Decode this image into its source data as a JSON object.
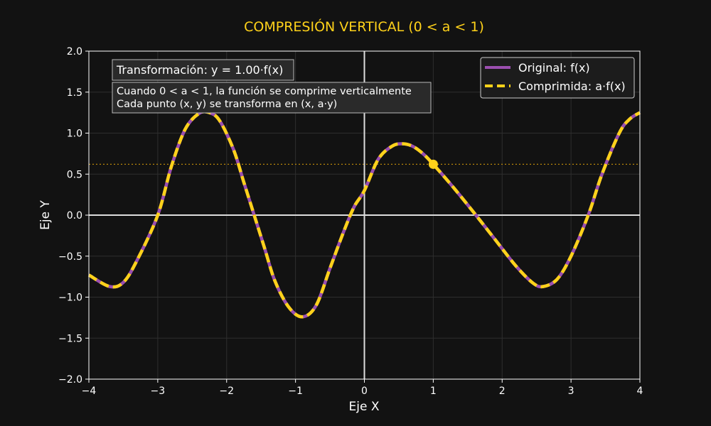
{
  "chart_data": {
    "type": "line",
    "title": "COMPRESIÓN VERTICAL (0 < a < 1)",
    "xlabel": "Eje X",
    "ylabel": "Eje Y",
    "xlim": [
      -4,
      4
    ],
    "ylim": [
      -2,
      2
    ],
    "x_ticks": [
      -4,
      -3,
      -2,
      -1,
      0,
      1,
      2,
      3,
      4
    ],
    "y_ticks": [
      -2.0,
      -1.5,
      -1.0,
      -0.5,
      0.0,
      0.5,
      1.0,
      1.5,
      2.0
    ],
    "x_tick_labels": [
      "−4",
      "−3",
      "−2",
      "−1",
      "0",
      "1",
      "2",
      "3",
      "4"
    ],
    "y_tick_labels": [
      "−2.0",
      "−1.5",
      "−1.0",
      "−0.5",
      "0.0",
      "0.5",
      "1.0",
      "1.5",
      "2.0"
    ],
    "grid": true,
    "legend_position": "top-right",
    "series": [
      {
        "name": "Original: f(x)",
        "color": "#9B4FB0",
        "style": "solid",
        "x": [
          -4.0,
          -3.7,
          -3.5,
          -3.3,
          -3.0,
          -2.8,
          -2.6,
          -2.4,
          -2.25,
          -2.1,
          -1.9,
          -1.75,
          -1.6,
          -1.45,
          -1.3,
          -1.1,
          -0.9,
          -0.7,
          -0.5,
          -0.3,
          -0.15,
          0.0,
          0.2,
          0.4,
          0.55,
          0.7,
          0.85,
          1.0,
          1.3,
          1.6,
          1.9,
          2.2,
          2.45,
          2.6,
          2.8,
          3.0,
          3.25,
          3.45,
          3.7,
          3.85,
          4.0
        ],
        "y": [
          -0.73,
          -0.87,
          -0.82,
          -0.55,
          0.0,
          0.6,
          1.05,
          1.24,
          1.25,
          1.15,
          0.8,
          0.4,
          0.0,
          -0.4,
          -0.8,
          -1.12,
          -1.24,
          -1.1,
          -0.65,
          -0.2,
          0.1,
          0.3,
          0.68,
          0.84,
          0.87,
          0.84,
          0.75,
          0.62,
          0.33,
          0.02,
          -0.3,
          -0.62,
          -0.83,
          -0.87,
          -0.78,
          -0.5,
          0.0,
          0.5,
          1.0,
          1.17,
          1.25
        ]
      },
      {
        "name": "Comprimida: a·f(x)",
        "color": "#FFD21A",
        "style": "dashed",
        "x": [
          -4.0,
          -3.7,
          -3.5,
          -3.3,
          -3.0,
          -2.8,
          -2.6,
          -2.4,
          -2.25,
          -2.1,
          -1.9,
          -1.75,
          -1.6,
          -1.45,
          -1.3,
          -1.1,
          -0.9,
          -0.7,
          -0.5,
          -0.3,
          -0.15,
          0.0,
          0.2,
          0.4,
          0.55,
          0.7,
          0.85,
          1.0,
          1.3,
          1.6,
          1.9,
          2.2,
          2.45,
          2.6,
          2.8,
          3.0,
          3.25,
          3.45,
          3.7,
          3.85,
          4.0
        ],
        "y": [
          -0.73,
          -0.87,
          -0.82,
          -0.55,
          0.0,
          0.6,
          1.05,
          1.24,
          1.25,
          1.15,
          0.8,
          0.4,
          0.0,
          -0.4,
          -0.8,
          -1.12,
          -1.24,
          -1.1,
          -0.65,
          -0.2,
          0.1,
          0.3,
          0.68,
          0.84,
          0.87,
          0.84,
          0.75,
          0.62,
          0.33,
          0.02,
          -0.3,
          -0.62,
          -0.83,
          -0.87,
          -0.78,
          -0.5,
          0.0,
          0.5,
          1.0,
          1.17,
          1.25
        ]
      }
    ],
    "marker_point": {
      "x": 1.0,
      "y": 0.62,
      "color": "#FFD21A"
    },
    "reference_line_y": 0.62,
    "annotations": {
      "transform_label": "Transformación: y = 1.00·f(x)",
      "info_line1": "Cuando 0 < a < 1, la función se comprime verticalmente",
      "info_line2": "Cada punto (x, y) se transforma en (x, a·y)"
    },
    "colors": {
      "background": "#121212",
      "original": "#9B4FB0",
      "compressed": "#FFD21A",
      "title": "#FFD21A",
      "axis_lines": "#dddddd"
    }
  }
}
